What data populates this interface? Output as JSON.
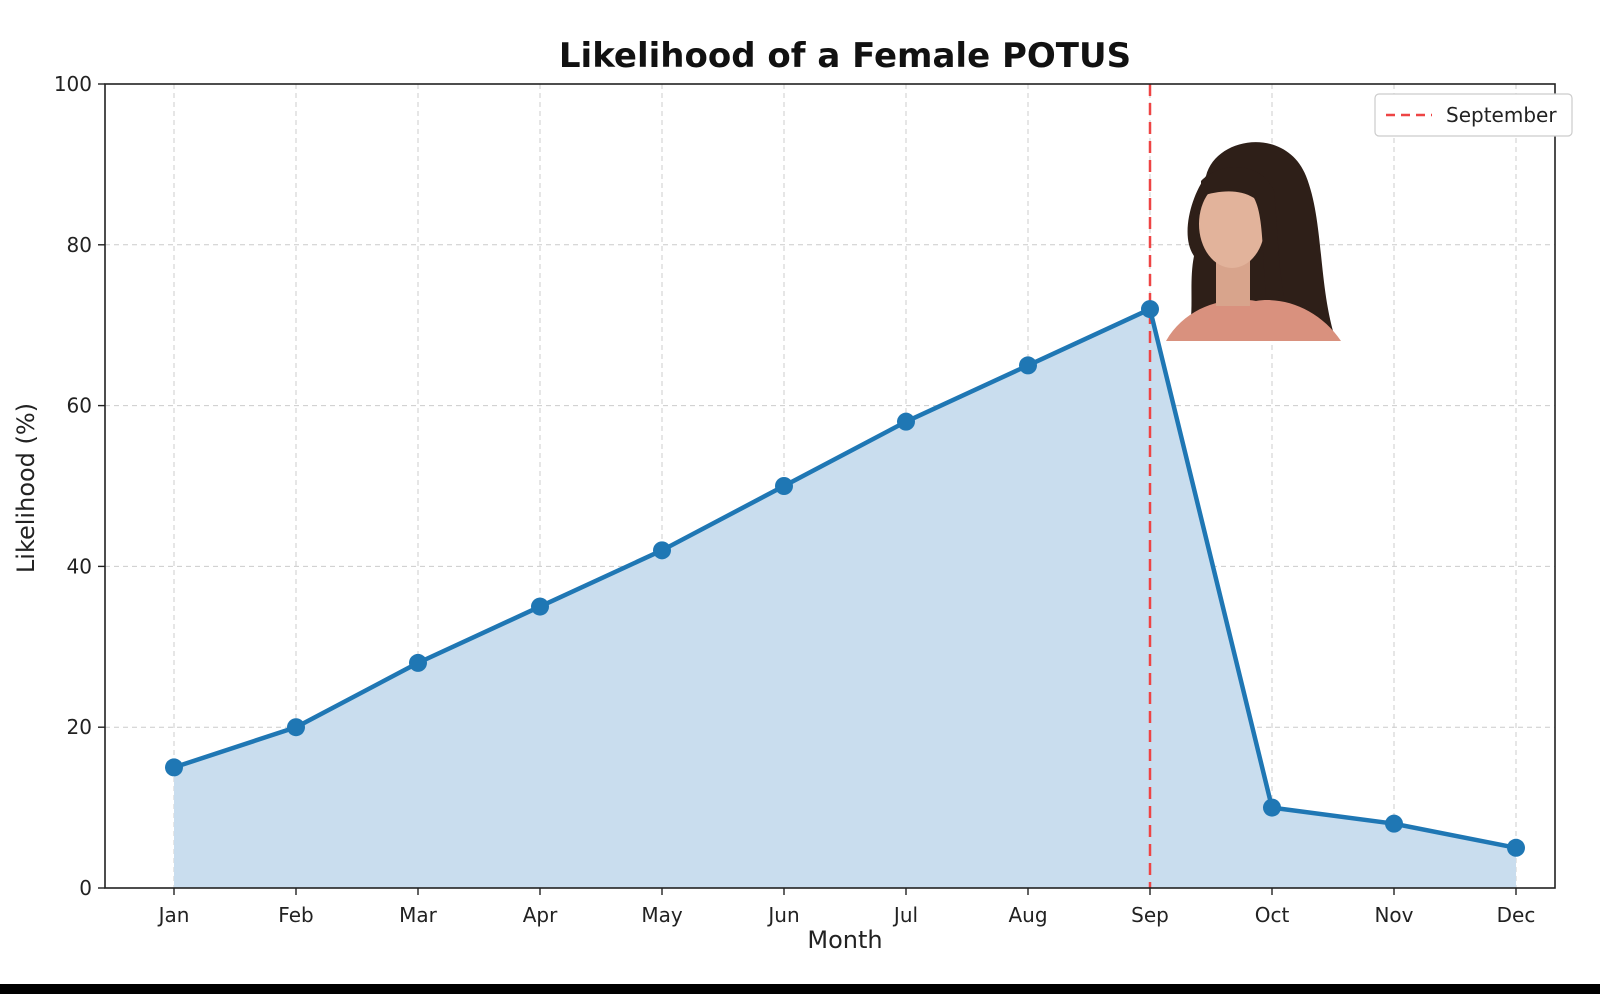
{
  "chart_data": {
    "type": "area",
    "title": "Likelihood of a Female POTUS",
    "xlabel": "Month",
    "ylabel": "Likelihood (%)",
    "categories": [
      "Jan",
      "Feb",
      "Mar",
      "Apr",
      "May",
      "Jun",
      "Jul",
      "Aug",
      "Sep",
      "Oct",
      "Nov",
      "Dec"
    ],
    "series": [
      {
        "values": [
          15,
          20,
          28,
          35,
          42,
          50,
          58,
          65,
          72,
          10,
          8,
          5
        ]
      }
    ],
    "ylim": [
      0,
      100
    ],
    "yticks": [
      0,
      20,
      40,
      60,
      80,
      100
    ],
    "grid": true,
    "legend": {
      "placement": "top-right",
      "entries": [
        "September"
      ]
    },
    "reference_line": {
      "category": "Sep",
      "label": "September",
      "style": "dashed"
    },
    "colors": {
      "line": "#1f77b4",
      "fill": "#c9ddee",
      "reference": "#ee4444",
      "grid": "#cccccc"
    }
  }
}
